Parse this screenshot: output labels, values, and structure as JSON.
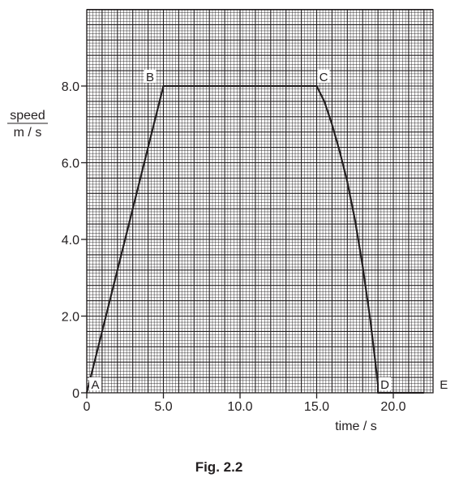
{
  "chart_data": {
    "type": "line",
    "title": "",
    "caption": "Fig. 2.2",
    "xlabel": "time / s",
    "ylabel_top": "speed",
    "ylabel_bottom": "m / s",
    "xlim": [
      0,
      22.5
    ],
    "ylim": [
      0,
      10
    ],
    "grid": true,
    "x_ticks": [
      0,
      5,
      10,
      15,
      20
    ],
    "x_tick_labels": [
      "0",
      "5.0",
      "10.0",
      "15.0",
      "20.0"
    ],
    "y_ticks": [
      0,
      2,
      4,
      6,
      8
    ],
    "y_tick_labels": [
      "0",
      "2.0",
      "4.0",
      "6.0",
      "8.0"
    ],
    "series": [
      {
        "x": [
          0,
          5,
          15,
          15.5,
          16,
          16.5,
          17,
          17.5,
          18,
          18.5,
          18.8,
          19,
          19,
          22
        ],
        "y": [
          0,
          8,
          8,
          7.6,
          7.0,
          6.3,
          5.5,
          4.5,
          3.3,
          1.9,
          0.9,
          0.2,
          0,
          0
        ]
      }
    ],
    "points": [
      {
        "label": "A",
        "x": 0,
        "y": 0
      },
      {
        "label": "B",
        "x": 5,
        "y": 8
      },
      {
        "label": "C",
        "x": 15,
        "y": 8
      },
      {
        "label": "D",
        "x": 19,
        "y": 0
      },
      {
        "label": "E",
        "x": 22,
        "y": 0
      }
    ]
  }
}
